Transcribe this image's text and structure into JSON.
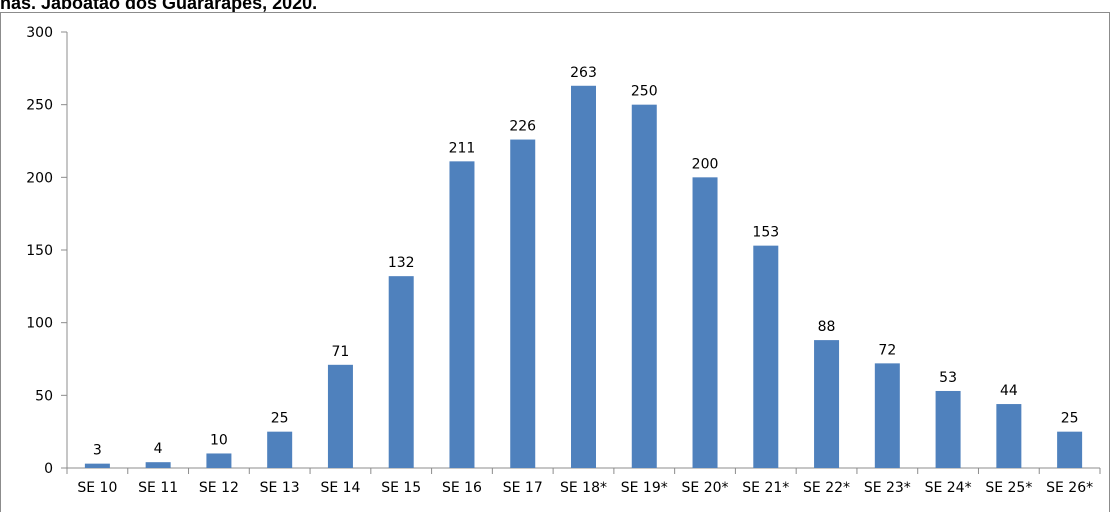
{
  "page": {
    "title_fragment": "nas. Jaboatão dos Guararapes, 2020."
  },
  "colors": {
    "bar": "#4f81bd",
    "axis": "#8c8c8c",
    "frame": "#8c8c8c"
  },
  "chart_data": {
    "type": "bar",
    "categories": [
      "SE 10",
      "SE 11",
      "SE 12",
      "SE 13",
      "SE 14",
      "SE 15",
      "SE 16",
      "SE 17",
      "SE 18*",
      "SE 19*",
      "SE 20*",
      "SE 21*",
      "SE 22*",
      "SE 23*",
      "SE 24*",
      "SE 25*",
      "SE 26*"
    ],
    "values": [
      3,
      4,
      10,
      25,
      71,
      132,
      211,
      226,
      263,
      250,
      200,
      153,
      88,
      72,
      53,
      44,
      25
    ],
    "ylim": [
      0,
      300
    ],
    "yticks": [
      0,
      50,
      100,
      150,
      200,
      250,
      300
    ],
    "grid": false,
    "data_labels": true
  }
}
